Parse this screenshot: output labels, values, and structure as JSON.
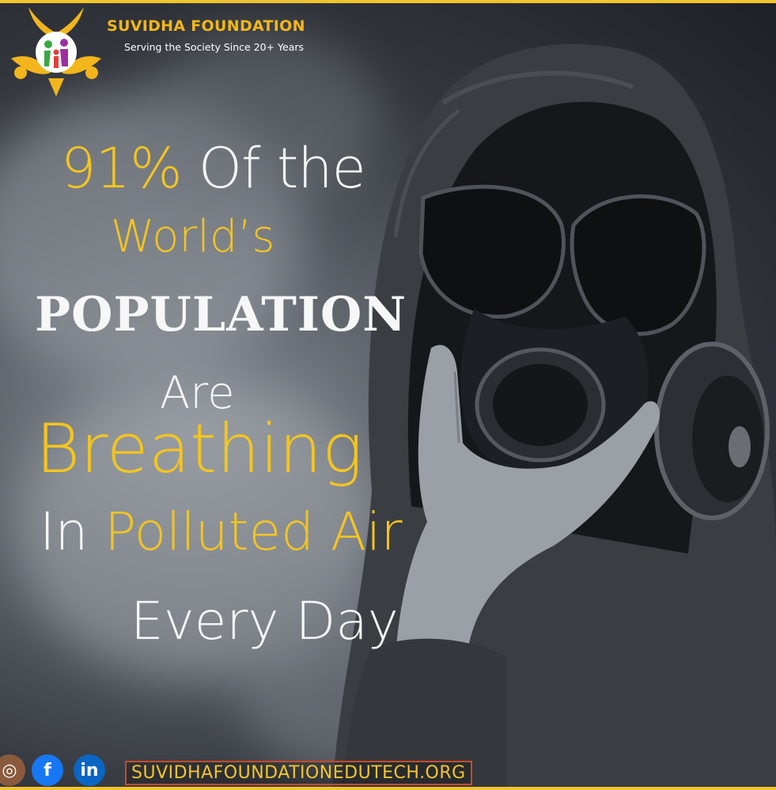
{
  "brand": {
    "name": "SUVIDHA FOUNDATION",
    "tagline": "Serving the Society Since 20+ Years"
  },
  "headline": {
    "line1_highlight": "91%",
    "line1_rest": "Of the",
    "line2": "World’s",
    "line3": "POPULATION",
    "line4": "Are",
    "line5": "Breathing",
    "line6_prefix": "In",
    "line6_highlight": "Polluted Air",
    "line7": "Every Day"
  },
  "footer": {
    "instagram_icon_glyph": "◎",
    "facebook_icon_glyph": "f",
    "linkedin_icon_glyph": "in",
    "website": "SUVIDHAFOUNDATIONEDUTECH.ORG"
  },
  "colors": {
    "accent_yellow": "#f4c520",
    "text_white": "#f5f5f5",
    "facebook_blue": "#1877f2",
    "linkedin_blue": "#0a66c2",
    "website_border": "#c74b2a"
  },
  "icons": [
    "logo-icon",
    "instagram-icon",
    "facebook-icon",
    "linkedin-icon"
  ]
}
